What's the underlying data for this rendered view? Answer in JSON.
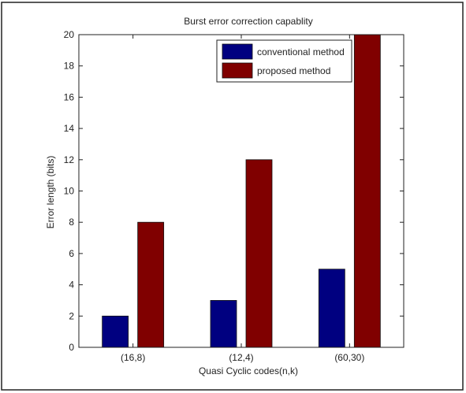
{
  "chart_data": {
    "type": "bar",
    "title": "Burst error correction capablity",
    "xlabel": "Quasi Cyclic codes(n,k)",
    "ylabel": "Error length (bits)",
    "categories": [
      "(16,8)",
      "(12,4)",
      "(60,30)"
    ],
    "series": [
      {
        "name": "conventional method",
        "values": [
          2,
          3,
          5
        ],
        "color": "#000080"
      },
      {
        "name": "proposed method",
        "values": [
          8,
          12,
          20
        ],
        "color": "#800000"
      }
    ],
    "ylim": [
      0,
      20
    ],
    "yticks": [
      0,
      2,
      4,
      6,
      8,
      10,
      12,
      14,
      16,
      18,
      20
    ],
    "grid": false,
    "legend_position": "top-right"
  }
}
